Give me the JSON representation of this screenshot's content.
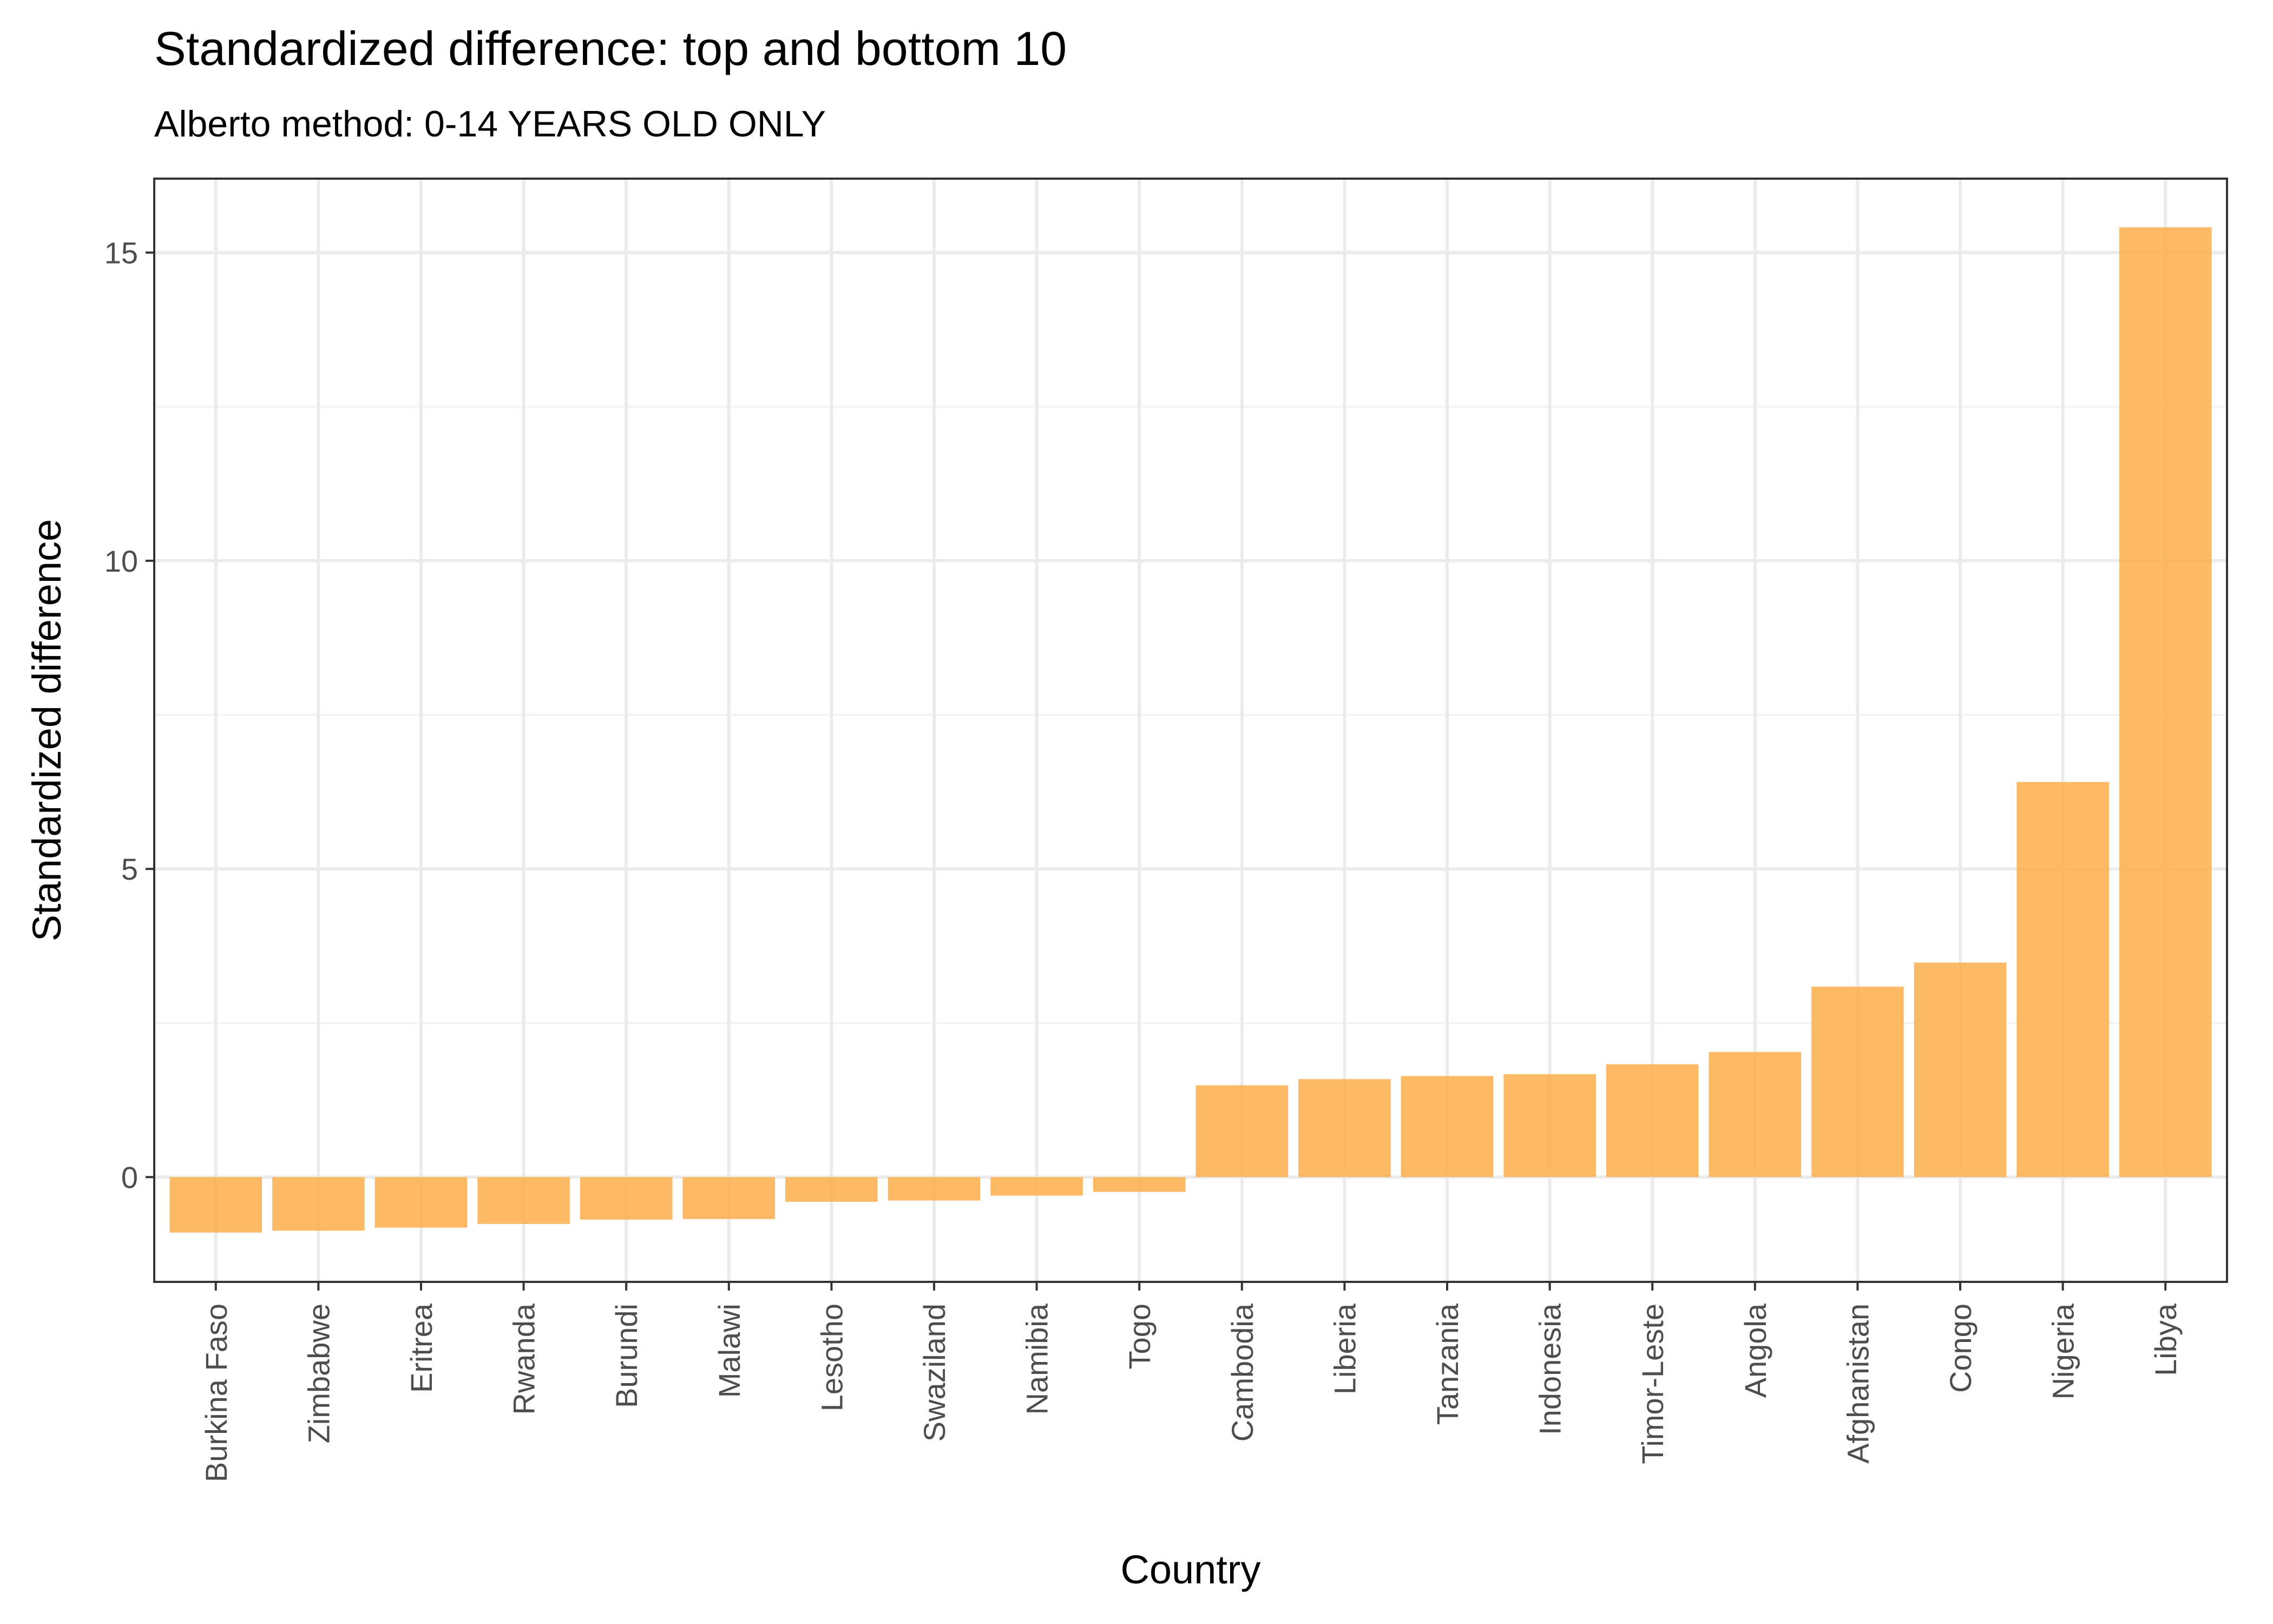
{
  "chart_data": {
    "type": "bar",
    "title": "Standardized difference: top and bottom 10",
    "subtitle": "Alberto method: 0-14 YEARS OLD ONLY",
    "xlabel": "Country",
    "ylabel": "Standardized difference",
    "categories": [
      "Burkina Faso",
      "Zimbabwe",
      "Eritrea",
      "Rwanda",
      "Burundi",
      "Malawi",
      "Lesotho",
      "Swaziland",
      "Namibia",
      "Togo",
      "Cambodia",
      "Liberia",
      "Tanzania",
      "Indonesia",
      "Timor-Leste",
      "Angola",
      "Afghanistan",
      "Congo",
      "Nigeria",
      "Libya"
    ],
    "values": [
      -0.9,
      -0.87,
      -0.82,
      -0.76,
      -0.69,
      -0.68,
      -0.4,
      -0.38,
      -0.3,
      -0.24,
      1.49,
      1.59,
      1.64,
      1.67,
      1.83,
      2.03,
      3.09,
      3.48,
      6.41,
      15.41
    ],
    "ylim": [
      -1.7,
      16.2
    ],
    "yticks": [
      0,
      5,
      10,
      15
    ],
    "ytick_labels": [
      "0",
      "5",
      "10",
      "15"
    ],
    "bar_color": "#fdae4b",
    "grid": true,
    "legend": "none"
  }
}
